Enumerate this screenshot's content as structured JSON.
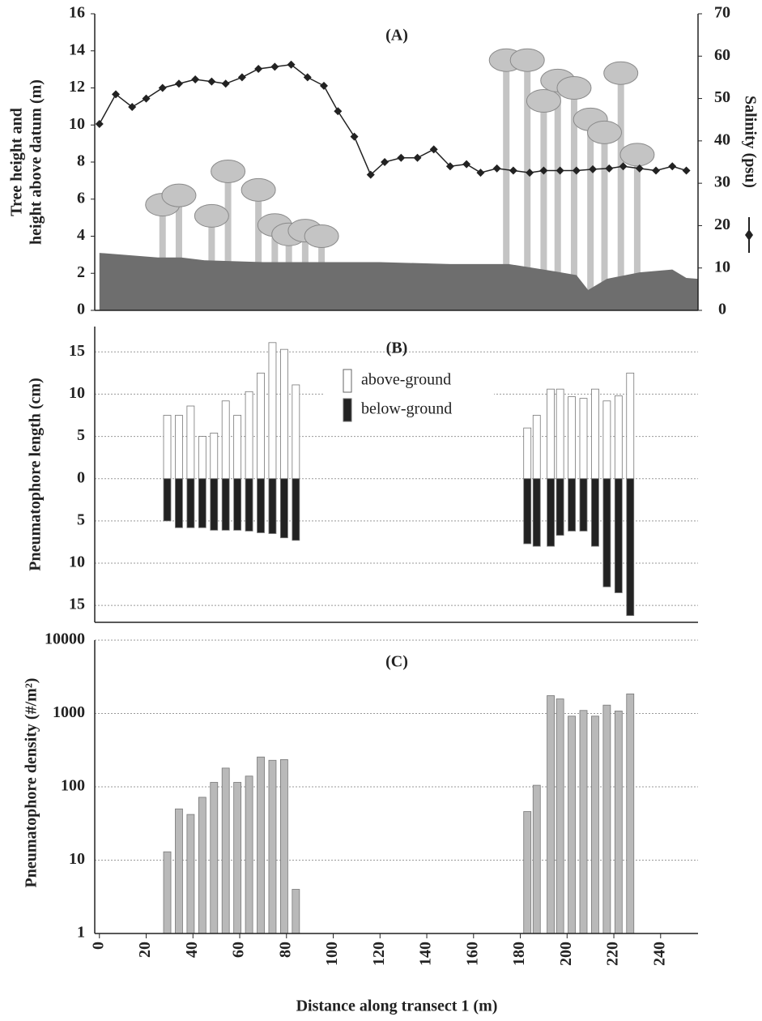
{
  "chart_data": [
    {
      "type": "line",
      "label": "(A)",
      "ylabel": [
        "Tree height and",
        "height above datum (m)"
      ],
      "y2label": "Salinity (psu)",
      "xlim": [
        -2,
        256
      ],
      "ylim": [
        0,
        16
      ],
      "yticks": [
        0,
        2,
        4,
        6,
        8,
        10,
        12,
        14,
        16
      ],
      "y2lim": [
        0,
        70
      ],
      "y2ticks": [
        0,
        10,
        20,
        30,
        40,
        50,
        60,
        70
      ],
      "series": [
        {
          "type": "lollipop",
          "color": "#c4c4c4",
          "x": [
            27,
            34,
            48,
            55,
            68,
            75,
            81,
            88,
            95,
            174,
            183,
            190,
            196,
            203,
            210,
            216,
            223,
            230
          ],
          "values": [
            5.7,
            6.2,
            5.1,
            7.5,
            6.5,
            4.6,
            4.1,
            4.3,
            4.0,
            13.5,
            13.5,
            11.3,
            12.4,
            12,
            10.3,
            9.6,
            12.8,
            8.4
          ]
        },
        {
          "type": "area",
          "color": "#6e6e6e",
          "x": [
            0,
            25,
            35,
            45,
            70,
            120,
            150,
            175,
            195,
            204,
            209,
            217,
            231,
            245,
            251,
            256
          ],
          "values": [
            3.1,
            2.85,
            2.85,
            2.7,
            2.6,
            2.6,
            2.5,
            2.5,
            2.1,
            1.9,
            1.1,
            1.7,
            2.05,
            2.2,
            1.75,
            1.7
          ]
        },
        {
          "type": "line",
          "color": "#222222",
          "axis": "y2",
          "x": [
            0,
            7,
            14,
            20,
            27,
            34,
            41,
            48,
            54,
            61,
            68,
            75,
            82,
            89,
            96,
            102,
            109,
            116,
            122,
            129,
            136,
            143,
            150,
            157,
            163,
            170,
            177,
            184,
            190,
            197,
            204,
            211,
            218,
            224,
            231,
            238,
            245,
            251
          ],
          "values": [
            44,
            51,
            48,
            50,
            52.5,
            53.5,
            54.5,
            54,
            53.5,
            55,
            57,
            57.5,
            58,
            55,
            53,
            47,
            41,
            32,
            35,
            36,
            36,
            38,
            34,
            34.5,
            32.5,
            33.5,
            33,
            32.5,
            33,
            33,
            33,
            33.3,
            33.5,
            34,
            33.5,
            33,
            34,
            33
          ]
        }
      ]
    },
    {
      "type": "bar",
      "label": "(B)",
      "ylabel": "Pneumatophore length (cm)",
      "xlim": [
        -2,
        256
      ],
      "ylim": [
        -17,
        18
      ],
      "yticks": [
        {
          "value": -15,
          "label": "15"
        },
        {
          "value": -10,
          "label": "10"
        },
        {
          "value": -5,
          "label": "5"
        },
        0,
        5,
        10,
        15
      ],
      "grid": true,
      "legend": "top",
      "x": [
        29,
        34,
        39,
        44,
        49,
        54,
        59,
        64,
        69,
        74,
        79,
        84,
        183,
        187,
        193,
        197,
        202,
        207,
        212,
        217,
        222,
        227
      ],
      "series": [
        {
          "name": "above-ground",
          "color": "#ffffff",
          "values": [
            7.5,
            7.5,
            8.6,
            5.0,
            5.4,
            9.2,
            7.5,
            10.3,
            12.5,
            16.1,
            15.3,
            11.1,
            6.0,
            7.5,
            10.6,
            10.6,
            9.7,
            9.5,
            10.6,
            9.2,
            9.8,
            12.5
          ]
        },
        {
          "name": "below-ground",
          "color": "#222222",
          "values": [
            -5.0,
            -5.8,
            -5.8,
            -5.8,
            -6.1,
            -6.1,
            -6.1,
            -6.2,
            -6.4,
            -6.5,
            -7.0,
            -7.3,
            -7.7,
            -8.0,
            -8.0,
            -6.7,
            -6.2,
            -6.2,
            -8.0,
            -12.8,
            -13.5,
            -16.2
          ]
        }
      ]
    },
    {
      "type": "bar",
      "label": "(C)",
      "ylabel": "Pneumatophore density (#/m²)",
      "xlabel": "Distance along transect 1 (m)",
      "xlim": [
        -2,
        256
      ],
      "xticks": [
        0,
        20,
        40,
        60,
        80,
        100,
        120,
        140,
        160,
        180,
        200,
        220,
        240
      ],
      "ylim": [
        1,
        10000
      ],
      "yticks": [
        1,
        10,
        100,
        1000,
        10000
      ],
      "log": true,
      "grid": true,
      "x": [
        29,
        34,
        39,
        44,
        49,
        54,
        59,
        64,
        69,
        74,
        79,
        84,
        183,
        187,
        193,
        197,
        202,
        207,
        212,
        217,
        222,
        227
      ],
      "series": [
        {
          "color": "#b9b9b9",
          "values": [
            13,
            50,
            42,
            72,
            115,
            180,
            115,
            140,
            255,
            230,
            235,
            4,
            46,
            105,
            1750,
            1580,
            920,
            1100,
            920,
            1300,
            1080,
            1850
          ]
        }
      ]
    }
  ]
}
